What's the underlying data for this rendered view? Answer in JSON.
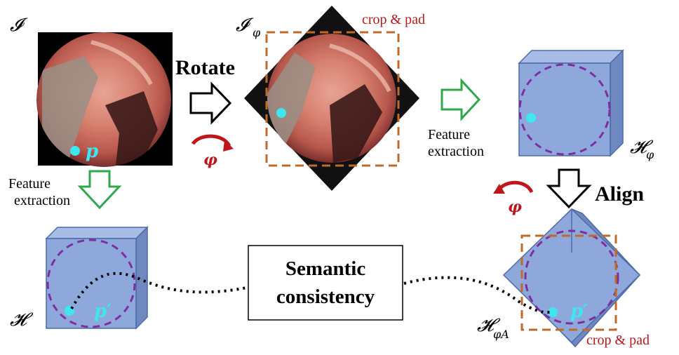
{
  "labels": {
    "img_symbol": "𝓘",
    "rot_img_symbol": "𝓘",
    "rot_img_sub": "φ",
    "crop_pad_top": "crop & pad",
    "crop_pad_bottom": "crop & pad",
    "rotate": "Rotate",
    "align": "Align",
    "phi_rotate": "φ",
    "phi_align": "φ",
    "feature_extraction_left_line1": "Feature",
    "feature_extraction_left_line2": "extraction",
    "feature_extraction_mid_line1": "Feature",
    "feature_extraction_mid_line2": "extraction",
    "point_p": "p",
    "point_p_prime_left": "p′",
    "point_p_prime_right": "p′",
    "H_symbol": "𝓗",
    "H_phi_symbol": "𝓗",
    "H_phi_sub": "φ",
    "H_phiA_symbol": "𝓗",
    "H_phiA_sub": "φA",
    "semantic_line1": "Semantic",
    "semantic_line2": "consistency"
  },
  "colors": {
    "cube_face": "#8fa8dc",
    "cube_side": "#6f88bf",
    "cube_edge": "#4a6aa8",
    "dashed_circle": "#7b2fa0",
    "crop_box": "#c06a2a",
    "green_arrow": "#2ea84a",
    "red_arrow": "#c0161b",
    "cyan_point": "#3ee6f0"
  },
  "icons": [
    "endoscope-image",
    "rotated-endoscope-image",
    "feature-cube",
    "rotate-arrow-icon",
    "down-arrow-icon",
    "right-arrow-icon"
  ]
}
